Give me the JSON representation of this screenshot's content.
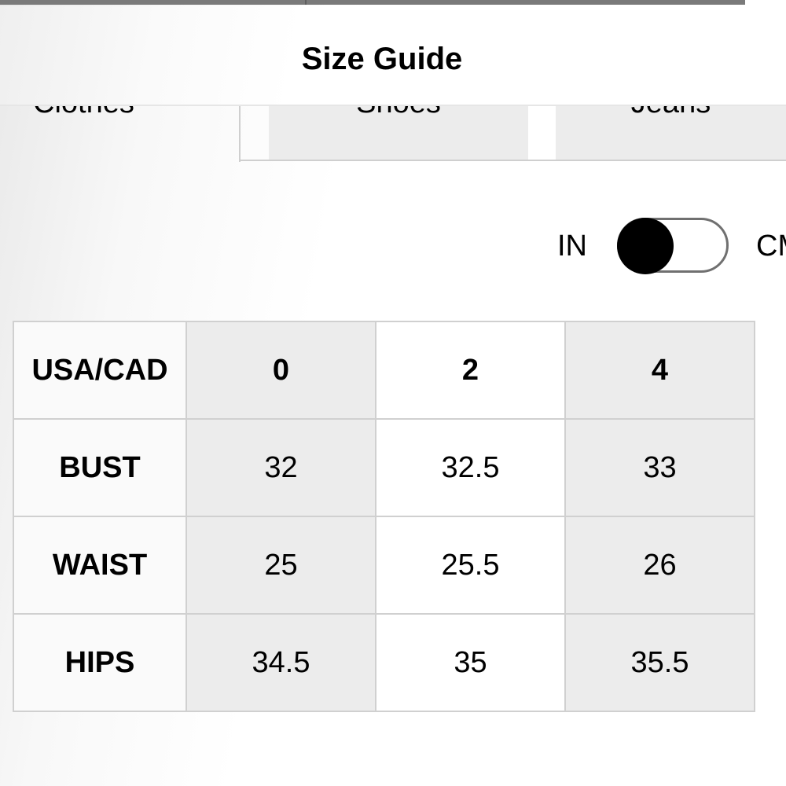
{
  "header": {
    "title": "Size Guide"
  },
  "tabs": [
    {
      "label": "Clothes",
      "active": true
    },
    {
      "label": "Shoes",
      "active": false
    },
    {
      "label": "Jeans",
      "active": false
    }
  ],
  "units": {
    "left": "IN",
    "right": "CM",
    "selected": "IN"
  },
  "table": {
    "header": [
      "USA/CAD",
      "0",
      "2",
      "4"
    ],
    "rows": [
      {
        "label": "BUST",
        "values": [
          "32",
          "32.5",
          "33"
        ]
      },
      {
        "label": "WAIST",
        "values": [
          "25",
          "25.5",
          "26"
        ]
      },
      {
        "label": "HIPS",
        "values": [
          "34.5",
          "35",
          "35.5"
        ]
      }
    ]
  }
}
